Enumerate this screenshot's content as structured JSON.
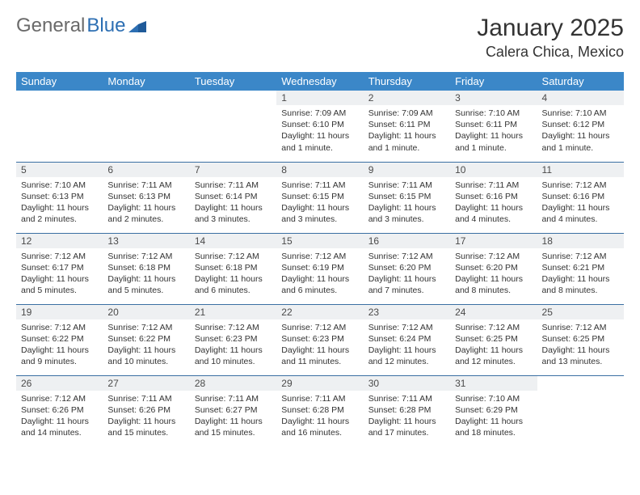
{
  "logo": {
    "text_grey": "General",
    "text_blue": "Blue"
  },
  "title": "January 2025",
  "location": "Calera Chica, Mexico",
  "colors": {
    "header_bg": "#3b87c8",
    "header_text": "#ffffff",
    "daynum_bg": "#eef0f2",
    "row_border": "#3b6fa3",
    "body_text": "#333333",
    "logo_grey": "#6a6a6a",
    "logo_blue": "#2d6fb3"
  },
  "dayHeaders": [
    "Sunday",
    "Monday",
    "Tuesday",
    "Wednesday",
    "Thursday",
    "Friday",
    "Saturday"
  ],
  "weeks": [
    [
      {
        "n": "",
        "sr": "",
        "ss": "",
        "dl": ""
      },
      {
        "n": "",
        "sr": "",
        "ss": "",
        "dl": ""
      },
      {
        "n": "",
        "sr": "",
        "ss": "",
        "dl": ""
      },
      {
        "n": "1",
        "sr": "Sunrise: 7:09 AM",
        "ss": "Sunset: 6:10 PM",
        "dl": "Daylight: 11 hours and 1 minute."
      },
      {
        "n": "2",
        "sr": "Sunrise: 7:09 AM",
        "ss": "Sunset: 6:11 PM",
        "dl": "Daylight: 11 hours and 1 minute."
      },
      {
        "n": "3",
        "sr": "Sunrise: 7:10 AM",
        "ss": "Sunset: 6:11 PM",
        "dl": "Daylight: 11 hours and 1 minute."
      },
      {
        "n": "4",
        "sr": "Sunrise: 7:10 AM",
        "ss": "Sunset: 6:12 PM",
        "dl": "Daylight: 11 hours and 1 minute."
      }
    ],
    [
      {
        "n": "5",
        "sr": "Sunrise: 7:10 AM",
        "ss": "Sunset: 6:13 PM",
        "dl": "Daylight: 11 hours and 2 minutes."
      },
      {
        "n": "6",
        "sr": "Sunrise: 7:11 AM",
        "ss": "Sunset: 6:13 PM",
        "dl": "Daylight: 11 hours and 2 minutes."
      },
      {
        "n": "7",
        "sr": "Sunrise: 7:11 AM",
        "ss": "Sunset: 6:14 PM",
        "dl": "Daylight: 11 hours and 3 minutes."
      },
      {
        "n": "8",
        "sr": "Sunrise: 7:11 AM",
        "ss": "Sunset: 6:15 PM",
        "dl": "Daylight: 11 hours and 3 minutes."
      },
      {
        "n": "9",
        "sr": "Sunrise: 7:11 AM",
        "ss": "Sunset: 6:15 PM",
        "dl": "Daylight: 11 hours and 3 minutes."
      },
      {
        "n": "10",
        "sr": "Sunrise: 7:11 AM",
        "ss": "Sunset: 6:16 PM",
        "dl": "Daylight: 11 hours and 4 minutes."
      },
      {
        "n": "11",
        "sr": "Sunrise: 7:12 AM",
        "ss": "Sunset: 6:16 PM",
        "dl": "Daylight: 11 hours and 4 minutes."
      }
    ],
    [
      {
        "n": "12",
        "sr": "Sunrise: 7:12 AM",
        "ss": "Sunset: 6:17 PM",
        "dl": "Daylight: 11 hours and 5 minutes."
      },
      {
        "n": "13",
        "sr": "Sunrise: 7:12 AM",
        "ss": "Sunset: 6:18 PM",
        "dl": "Daylight: 11 hours and 5 minutes."
      },
      {
        "n": "14",
        "sr": "Sunrise: 7:12 AM",
        "ss": "Sunset: 6:18 PM",
        "dl": "Daylight: 11 hours and 6 minutes."
      },
      {
        "n": "15",
        "sr": "Sunrise: 7:12 AM",
        "ss": "Sunset: 6:19 PM",
        "dl": "Daylight: 11 hours and 6 minutes."
      },
      {
        "n": "16",
        "sr": "Sunrise: 7:12 AM",
        "ss": "Sunset: 6:20 PM",
        "dl": "Daylight: 11 hours and 7 minutes."
      },
      {
        "n": "17",
        "sr": "Sunrise: 7:12 AM",
        "ss": "Sunset: 6:20 PM",
        "dl": "Daylight: 11 hours and 8 minutes."
      },
      {
        "n": "18",
        "sr": "Sunrise: 7:12 AM",
        "ss": "Sunset: 6:21 PM",
        "dl": "Daylight: 11 hours and 8 minutes."
      }
    ],
    [
      {
        "n": "19",
        "sr": "Sunrise: 7:12 AM",
        "ss": "Sunset: 6:22 PM",
        "dl": "Daylight: 11 hours and 9 minutes."
      },
      {
        "n": "20",
        "sr": "Sunrise: 7:12 AM",
        "ss": "Sunset: 6:22 PM",
        "dl": "Daylight: 11 hours and 10 minutes."
      },
      {
        "n": "21",
        "sr": "Sunrise: 7:12 AM",
        "ss": "Sunset: 6:23 PM",
        "dl": "Daylight: 11 hours and 10 minutes."
      },
      {
        "n": "22",
        "sr": "Sunrise: 7:12 AM",
        "ss": "Sunset: 6:23 PM",
        "dl": "Daylight: 11 hours and 11 minutes."
      },
      {
        "n": "23",
        "sr": "Sunrise: 7:12 AM",
        "ss": "Sunset: 6:24 PM",
        "dl": "Daylight: 11 hours and 12 minutes."
      },
      {
        "n": "24",
        "sr": "Sunrise: 7:12 AM",
        "ss": "Sunset: 6:25 PM",
        "dl": "Daylight: 11 hours and 12 minutes."
      },
      {
        "n": "25",
        "sr": "Sunrise: 7:12 AM",
        "ss": "Sunset: 6:25 PM",
        "dl": "Daylight: 11 hours and 13 minutes."
      }
    ],
    [
      {
        "n": "26",
        "sr": "Sunrise: 7:12 AM",
        "ss": "Sunset: 6:26 PM",
        "dl": "Daylight: 11 hours and 14 minutes."
      },
      {
        "n": "27",
        "sr": "Sunrise: 7:11 AM",
        "ss": "Sunset: 6:26 PM",
        "dl": "Daylight: 11 hours and 15 minutes."
      },
      {
        "n": "28",
        "sr": "Sunrise: 7:11 AM",
        "ss": "Sunset: 6:27 PM",
        "dl": "Daylight: 11 hours and 15 minutes."
      },
      {
        "n": "29",
        "sr": "Sunrise: 7:11 AM",
        "ss": "Sunset: 6:28 PM",
        "dl": "Daylight: 11 hours and 16 minutes."
      },
      {
        "n": "30",
        "sr": "Sunrise: 7:11 AM",
        "ss": "Sunset: 6:28 PM",
        "dl": "Daylight: 11 hours and 17 minutes."
      },
      {
        "n": "31",
        "sr": "Sunrise: 7:10 AM",
        "ss": "Sunset: 6:29 PM",
        "dl": "Daylight: 11 hours and 18 minutes."
      },
      {
        "n": "",
        "sr": "",
        "ss": "",
        "dl": ""
      }
    ]
  ]
}
